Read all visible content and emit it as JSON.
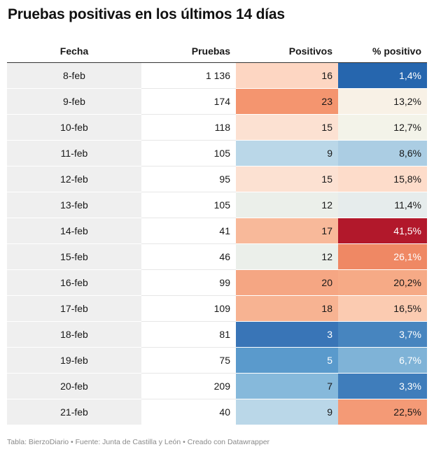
{
  "title": "Pruebas positivas en los últimos 14 días",
  "footer": "Tabla: BierzoDiario • Fuente: Junta de Castilla y León • Creado con Datawrapper",
  "chart_data": {
    "type": "table",
    "columns": [
      "Fecha",
      "Pruebas",
      "Positivos",
      "% positivo"
    ],
    "rows": [
      {
        "fecha": "8-feb",
        "pruebas": "1 136",
        "positivos": "16",
        "pct": "1,4%",
        "pos_color": "#fdd6c2",
        "pos_text": "#181818",
        "pct_color": "#2666ae",
        "pct_text": "#ffffff"
      },
      {
        "fecha": "9-feb",
        "pruebas": "174",
        "positivos": "23",
        "pct": "13,2%",
        "pos_color": "#f4956f",
        "pos_text": "#181818",
        "pct_color": "#f8f1e6",
        "pct_text": "#181818"
      },
      {
        "fecha": "10-feb",
        "pruebas": "118",
        "positivos": "15",
        "pct": "12,7%",
        "pos_color": "#fce1d2",
        "pos_text": "#181818",
        "pct_color": "#f3f3e9",
        "pct_text": "#181818"
      },
      {
        "fecha": "11-feb",
        "pruebas": "105",
        "positivos": "9",
        "pct": "8,6%",
        "pos_color": "#bad7e8",
        "pos_text": "#181818",
        "pct_color": "#abcde3",
        "pct_text": "#181818"
      },
      {
        "fecha": "12-feb",
        "pruebas": "95",
        "positivos": "15",
        "pct": "15,8%",
        "pos_color": "#fce1d2",
        "pos_text": "#181818",
        "pct_color": "#fddcca",
        "pct_text": "#181818"
      },
      {
        "fecha": "13-feb",
        "pruebas": "105",
        "positivos": "12",
        "pct": "11,4%",
        "pos_color": "#ebefea",
        "pos_text": "#181818",
        "pct_color": "#e6ecec",
        "pct_text": "#181818"
      },
      {
        "fecha": "14-feb",
        "pruebas": "41",
        "positivos": "17",
        "pct": "41,5%",
        "pos_color": "#f8b99a",
        "pos_text": "#181818",
        "pct_color": "#b2182b",
        "pct_text": "#ffffff"
      },
      {
        "fecha": "15-feb",
        "pruebas": "46",
        "positivos": "12",
        "pct": "26,1%",
        "pos_color": "#ebefea",
        "pos_text": "#181818",
        "pct_color": "#ef8864",
        "pct_text": "#ffffff"
      },
      {
        "fecha": "16-feb",
        "pruebas": "99",
        "positivos": "20",
        "pct": "20,2%",
        "pos_color": "#f5a683",
        "pos_text": "#181818",
        "pct_color": "#f6aa86",
        "pct_text": "#181818"
      },
      {
        "fecha": "17-feb",
        "pruebas": "109",
        "positivos": "18",
        "pct": "16,5%",
        "pos_color": "#f7b392",
        "pos_text": "#181818",
        "pct_color": "#fbcbb1",
        "pct_text": "#181818"
      },
      {
        "fecha": "18-feb",
        "pruebas": "81",
        "positivos": "3",
        "pct": "3,7%",
        "pos_color": "#3975b7",
        "pos_text": "#ffffff",
        "pct_color": "#4785bf",
        "pct_text": "#ffffff"
      },
      {
        "fecha": "19-feb",
        "pruebas": "75",
        "positivos": "5",
        "pct": "6,7%",
        "pos_color": "#5a9acc",
        "pos_text": "#ffffff",
        "pct_color": "#7fb3d7",
        "pct_text": "#ffffff"
      },
      {
        "fecha": "20-feb",
        "pruebas": "209",
        "positivos": "7",
        "pct": "3,3%",
        "pos_color": "#86b9db",
        "pos_text": "#181818",
        "pct_color": "#3f7dbb",
        "pct_text": "#ffffff"
      },
      {
        "fecha": "21-feb",
        "pruebas": "40",
        "positivos": "9",
        "pct": "22,5%",
        "pos_color": "#bad7e8",
        "pos_text": "#181818",
        "pct_color": "#f49a76",
        "pct_text": "#181818"
      }
    ]
  }
}
